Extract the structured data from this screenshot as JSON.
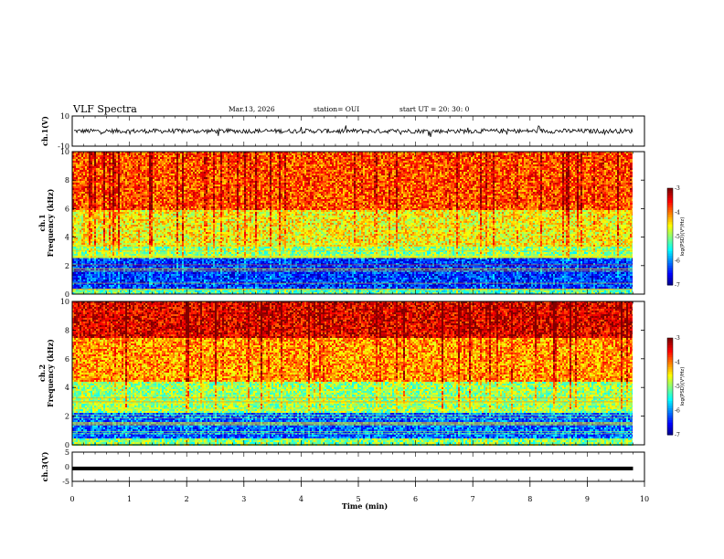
{
  "header": {
    "title": "VLF Spectra",
    "date": "Mar.13, 2026",
    "station": "station= OUI",
    "start": "start  UT =  20: 30: 0"
  },
  "chart_data": [
    {
      "type": "line",
      "panel": "ch1-waveform",
      "ylabel": "ch.1(V)",
      "ylim": [
        -10,
        10
      ],
      "yticks": [
        "10",
        "-10"
      ],
      "xlim": [
        0,
        10
      ],
      "description_values": {
        "baseline": 0,
        "typical_amplitude": 1.5,
        "max_spike": 4
      },
      "color": "#000000"
    },
    {
      "type": "heatmap",
      "panel": "ch1-spectrogram",
      "ylabel": "Frequency (kHz)",
      "channel": "ch.1",
      "ylim": [
        0,
        10
      ],
      "yticks": [
        "0",
        "2",
        "4",
        "6",
        "8",
        "10"
      ],
      "xlim": [
        0,
        9.8
      ],
      "colorbar": {
        "label": "log(PSD)(V²/Hz)",
        "range": [
          -7,
          -3
        ],
        "ticks": [
          "-3",
          "-4",
          "-5",
          "-6",
          "-7"
        ]
      },
      "bands": [
        {
          "f_low": 0,
          "f_high": 0.5,
          "level": -5.2
        },
        {
          "f_low": 0.5,
          "f_high": 2.6,
          "level": -6.3
        },
        {
          "f_low": 2.6,
          "f_high": 3.4,
          "level": -5.0
        },
        {
          "f_low": 3.4,
          "f_high": 6.0,
          "level": -4.5
        },
        {
          "f_low": 6.0,
          "f_high": 10,
          "level": -3.8
        }
      ]
    },
    {
      "type": "heatmap",
      "panel": "ch2-spectrogram",
      "ylabel": "Frequency (kHz)",
      "channel": "ch.2",
      "ylim": [
        0,
        10
      ],
      "yticks": [
        "0",
        "2",
        "4",
        "6",
        "8",
        "10"
      ],
      "xlim": [
        0,
        9.8
      ],
      "colorbar": {
        "label": "log(PSD)(V²/Hz)",
        "range": [
          -7,
          -3
        ],
        "ticks": [
          "-3",
          "-4",
          "-5",
          "-6",
          "-7"
        ]
      },
      "bands": [
        {
          "f_low": 0,
          "f_high": 0.5,
          "level": -5.0
        },
        {
          "f_low": 0.5,
          "f_high": 2.3,
          "level": -6.1
        },
        {
          "f_low": 2.3,
          "f_high": 4.5,
          "level": -4.9
        },
        {
          "f_low": 4.5,
          "f_high": 7.5,
          "level": -4.1
        },
        {
          "f_low": 7.5,
          "f_high": 10,
          "level": -3.4
        }
      ]
    },
    {
      "type": "line",
      "panel": "ch3-waveform",
      "ylabel": "ch.3(V)",
      "ylim": [
        -5,
        5
      ],
      "yticks": [
        "5",
        "0",
        "-5"
      ],
      "xlim": [
        0,
        9.8
      ],
      "values_constant": -0.6,
      "color": "#000000"
    }
  ],
  "xaxis": {
    "label": "Time (min)",
    "ticks": [
      "0",
      "1",
      "2",
      "3",
      "4",
      "5",
      "6",
      "7",
      "8",
      "9",
      "10"
    ],
    "range": [
      0,
      10
    ]
  },
  "side_labels": {
    "ch1_channel": "ch.1",
    "ch2_channel": "ch.2",
    "freq_label": "Frequency (kHz)"
  }
}
